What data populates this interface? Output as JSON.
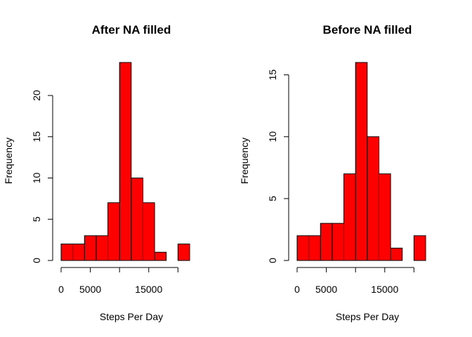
{
  "chart_data": [
    {
      "type": "bar",
      "title": "After NA filled",
      "xlabel": "Steps Per Day",
      "ylabel": "Frequency",
      "bin_edges": [
        0,
        2000,
        4000,
        6000,
        8000,
        10000,
        12000,
        14000,
        16000,
        18000,
        20000,
        22000
      ],
      "values": [
        2,
        2,
        3,
        3,
        7,
        24,
        10,
        7,
        1,
        0,
        2
      ],
      "xlim": [
        0,
        22000
      ],
      "ylim": [
        0,
        24
      ],
      "x_ticks": [
        0,
        5000,
        10000,
        15000,
        20000
      ],
      "x_tick_labels": [
        "0",
        "5000",
        "",
        "15000",
        ""
      ],
      "y_ticks": [
        0,
        5,
        10,
        15,
        20
      ],
      "y_tick_labels": [
        "0",
        "5",
        "10",
        "15",
        "20"
      ],
      "bar_color": "#ff0000",
      "grid": false
    },
    {
      "type": "bar",
      "title": "Before NA filled",
      "xlabel": "Steps Per Day",
      "ylabel": "Frequency",
      "bin_edges": [
        0,
        2000,
        4000,
        6000,
        8000,
        10000,
        12000,
        14000,
        16000,
        18000,
        20000,
        22000
      ],
      "values": [
        2,
        2,
        3,
        3,
        7,
        16,
        10,
        7,
        1,
        0,
        2
      ],
      "xlim": [
        0,
        22000
      ],
      "ylim": [
        0,
        16
      ],
      "x_ticks": [
        0,
        5000,
        10000,
        15000,
        20000
      ],
      "x_tick_labels": [
        "0",
        "5000",
        "",
        "15000",
        ""
      ],
      "y_ticks": [
        0,
        5,
        10,
        15
      ],
      "y_tick_labels": [
        "0",
        "5",
        "10",
        "15"
      ],
      "bar_color": "#ff0000",
      "grid": false
    }
  ]
}
